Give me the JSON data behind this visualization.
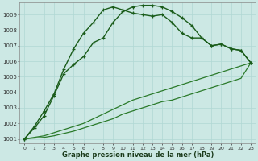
{
  "title": "Graphe pression niveau de la mer (hPa)",
  "bg_color": "#cce8e4",
  "grid_color": "#b0d8d4",
  "line_color_dark": "#1a5c1a",
  "line_color_mid": "#2a7a2a",
  "xlim": [
    -0.5,
    23.5
  ],
  "ylim": [
    1000.7,
    1009.8
  ],
  "yticks": [
    1001,
    1002,
    1003,
    1004,
    1005,
    1006,
    1007,
    1008,
    1009
  ],
  "xticks": [
    0,
    1,
    2,
    3,
    4,
    5,
    6,
    7,
    8,
    9,
    10,
    11,
    12,
    13,
    14,
    15,
    16,
    17,
    18,
    19,
    20,
    21,
    22,
    23
  ],
  "series1": [
    1001.0,
    1001.7,
    1002.5,
    1003.8,
    1005.2,
    1005.8,
    1006.3,
    1007.2,
    1007.5,
    1008.5,
    1009.2,
    1009.5,
    1009.6,
    1009.6,
    1009.5,
    1009.2,
    1008.8,
    1008.3,
    1007.5,
    1007.0,
    1007.1,
    1006.8,
    1006.7,
    1005.9
  ],
  "series2": [
    1001.0,
    1001.8,
    1002.8,
    1003.9,
    1005.5,
    1006.8,
    1007.8,
    1008.5,
    1009.3,
    1009.5,
    1009.3,
    1009.1,
    1009.0,
    1008.9,
    1009.0,
    1008.5,
    1007.8,
    1007.5,
    1007.5,
    1007.0,
    1007.1,
    1006.8,
    1006.7,
    1005.9
  ],
  "series3": [
    1001.0,
    1001.1,
    1001.2,
    1001.4,
    1001.6,
    1001.8,
    1002.0,
    1002.3,
    1002.6,
    1002.9,
    1003.2,
    1003.5,
    1003.7,
    1003.9,
    1004.1,
    1004.3,
    1004.5,
    1004.7,
    1004.9,
    1005.1,
    1005.3,
    1005.5,
    1005.7,
    1005.9
  ],
  "series4": [
    1001.0,
    1001.05,
    1001.1,
    1001.2,
    1001.35,
    1001.5,
    1001.7,
    1001.9,
    1002.1,
    1002.3,
    1002.6,
    1002.8,
    1003.0,
    1003.2,
    1003.4,
    1003.5,
    1003.7,
    1003.9,
    1004.1,
    1004.3,
    1004.5,
    1004.7,
    1004.9,
    1005.9
  ]
}
